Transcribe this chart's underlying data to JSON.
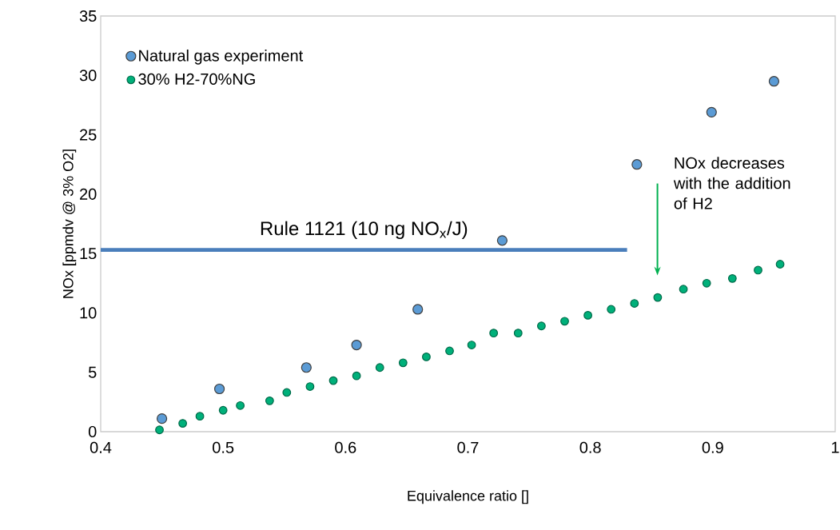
{
  "chart_data": {
    "type": "scatter",
    "xlabel": "Equivalence ratio []",
    "ylabel": "NOx [ppmdv @ 3% O2]",
    "xlim": [
      0.4,
      1
    ],
    "ylim": [
      0,
      35
    ],
    "xticks": [
      0.4,
      0.5,
      0.6,
      0.7,
      0.8,
      0.9,
      1
    ],
    "yticks": [
      0,
      5,
      10,
      15,
      20,
      25,
      30,
      35
    ],
    "grid": false,
    "legend": "top left",
    "series": [
      {
        "name": "Natural gas experiment",
        "color": "#5b9bd5",
        "marker": "circle",
        "x": [
          0.45,
          0.497,
          0.568,
          0.609,
          0.659,
          0.728,
          0.838,
          0.899,
          0.95
        ],
        "values": [
          1.1,
          3.6,
          5.4,
          7.3,
          10.3,
          16.1,
          22.5,
          26.9,
          29.5
        ]
      },
      {
        "name": "30% H2-70%NG",
        "color": "#00b07a",
        "marker": "circle",
        "x": [
          0.448,
          0.467,
          0.481,
          0.5,
          0.514,
          0.538,
          0.552,
          0.571,
          0.59,
          0.609,
          0.628,
          0.647,
          0.666,
          0.685,
          0.703,
          0.721,
          0.741,
          0.76,
          0.779,
          0.798,
          0.817,
          0.836,
          0.855,
          0.876,
          0.895,
          0.916,
          0.937,
          0.955
        ],
        "values": [
          0.15,
          0.7,
          1.3,
          1.8,
          2.2,
          2.6,
          3.3,
          3.8,
          4.3,
          4.7,
          5.4,
          5.8,
          6.3,
          6.8,
          7.3,
          8.3,
          8.3,
          8.9,
          9.3,
          9.8,
          10.3,
          10.8,
          11.3,
          12.0,
          12.5,
          12.9,
          13.6,
          14.1
        ]
      },
      {
        "name": "Rule 1121 (10 ng NO$_{x}$/J)",
        "type": "line",
        "color": "#4a7ebb",
        "x": [
          0.4,
          0.83
        ],
        "values": [
          15.3,
          15.3
        ],
        "marker": "none"
      }
    ],
    "annotations": [
      "NOx decreases with the addition of H2"
    ]
  }
}
